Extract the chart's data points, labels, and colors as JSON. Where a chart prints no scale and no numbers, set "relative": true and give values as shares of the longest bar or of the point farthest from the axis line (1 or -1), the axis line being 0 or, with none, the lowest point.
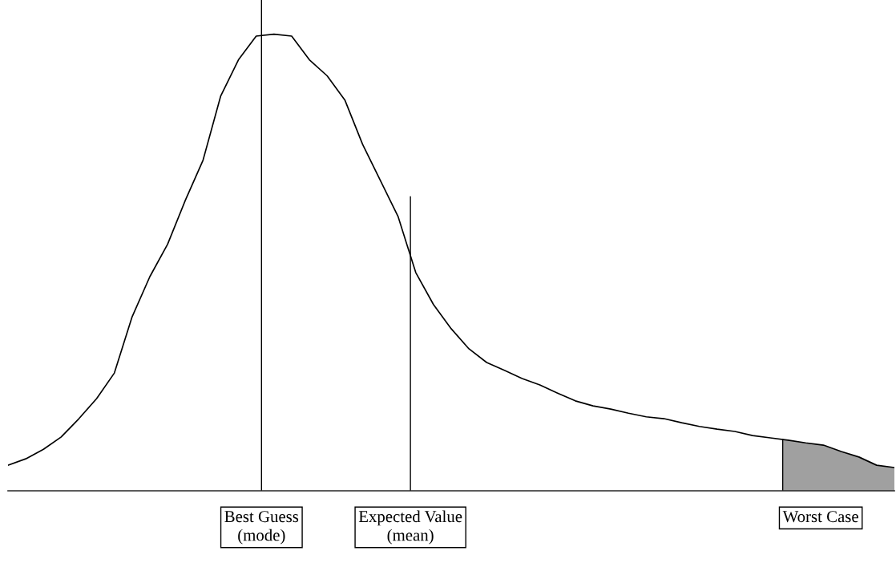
{
  "chart_data": {
    "type": "line",
    "relative": true,
    "categories": [
      null,
      null,
      null,
      null,
      null,
      null,
      null,
      null,
      null,
      null,
      null,
      null,
      null,
      null,
      null,
      null,
      null,
      null,
      null,
      null,
      null,
      null,
      null,
      null,
      null,
      null,
      null,
      null,
      null,
      null,
      null,
      null,
      null,
      null,
      null,
      null,
      null,
      null,
      null,
      null,
      null,
      null,
      null,
      null,
      null,
      null,
      null,
      null,
      null,
      null,
      null
    ],
    "series": [
      {
        "color": "#000000",
        "values": [
          0.056,
          0.07,
          0.091,
          0.118,
          0.158,
          0.202,
          0.258,
          0.381,
          0.469,
          0.54,
          0.636,
          0.724,
          0.865,
          0.944,
          0.996,
          1,
          0.996,
          0.944,
          0.909,
          0.856,
          0.759,
          0.68,
          0.601,
          0.478,
          0.408,
          0.355,
          0.311,
          0.281,
          0.264,
          0.246,
          0.232,
          0.214,
          0.197,
          0.186,
          0.179,
          0.17,
          0.162,
          0.158,
          0.149,
          0.141,
          0.135,
          0.13,
          0.121,
          0.116,
          0.111,
          0.105,
          0.1,
          0.086,
          0.074,
          0.056,
          0.051
        ]
      }
    ],
    "annotations": [
      "Best Guess\n(mode)",
      "Expected Value\n(mean)",
      "Worst Case"
    ]
  }
}
